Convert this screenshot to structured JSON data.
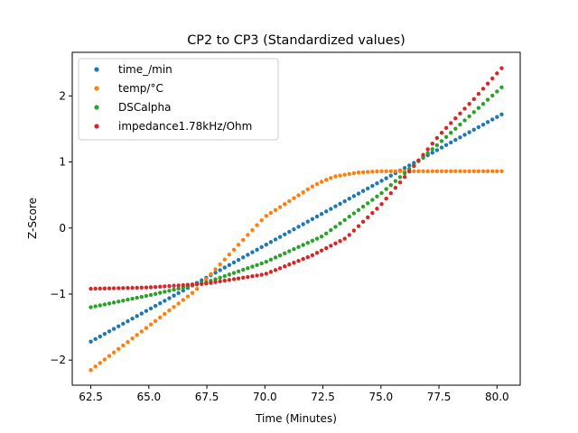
{
  "chart_data": {
    "type": "scatter",
    "title": "CP2 to CP3 (Standardized values)",
    "xlabel": "Time (Minutes)",
    "ylabel": "Z-Score",
    "xlim": [
      61.7,
      81.0
    ],
    "ylim": [
      -2.38,
      2.66
    ],
    "xticks": [
      62.5,
      65.0,
      67.5,
      70.0,
      72.5,
      75.0,
      77.5,
      80.0
    ],
    "xtick_labels": [
      "62.5",
      "65.0",
      "67.5",
      "70.0",
      "72.5",
      "75.0",
      "77.5",
      "80.0"
    ],
    "yticks": [
      -2,
      -1,
      0,
      1,
      2
    ],
    "ytick_labels": [
      "−2",
      "−1",
      "0",
      "1",
      "2"
    ],
    "grid": false,
    "legend_position": "top-left",
    "x_start": 62.5,
    "x_end": 80.2,
    "point_count": 90,
    "series": [
      {
        "name": "time_/min",
        "color": "#1f77b4",
        "knots_x": [
          62.5,
          80.2
        ],
        "knots_y": [
          -1.72,
          1.72
        ]
      },
      {
        "name": "temp/°C",
        "color": "#ff7f0e",
        "knots_x": [
          62.5,
          67.0,
          70.0,
          72.0,
          72.5,
          73.0,
          74.0,
          75.0,
          80.2
        ],
        "knots_y": [
          -2.15,
          -0.95,
          0.17,
          0.62,
          0.71,
          0.78,
          0.84,
          0.86,
          0.86
        ]
      },
      {
        "name": "DSCalpha",
        "color": "#2ca02c",
        "knots_x": [
          62.5,
          65.0,
          67.5,
          70.0,
          72.5,
          75.0,
          77.5,
          80.2
        ],
        "knots_y": [
          -1.2,
          -1.02,
          -0.82,
          -0.52,
          -0.12,
          0.52,
          1.28,
          2.13
        ]
      },
      {
        "name": "impedance1.78kHz/Ohm",
        "color": "#d62728",
        "knots_x": [
          62.5,
          65.0,
          67.5,
          70.0,
          72.0,
          73.5,
          75.0,
          76.5,
          77.5,
          79.0,
          80.2
        ],
        "knots_y": [
          -0.92,
          -0.9,
          -0.84,
          -0.7,
          -0.42,
          -0.15,
          0.35,
          0.97,
          1.4,
          1.95,
          2.42
        ]
      }
    ]
  }
}
